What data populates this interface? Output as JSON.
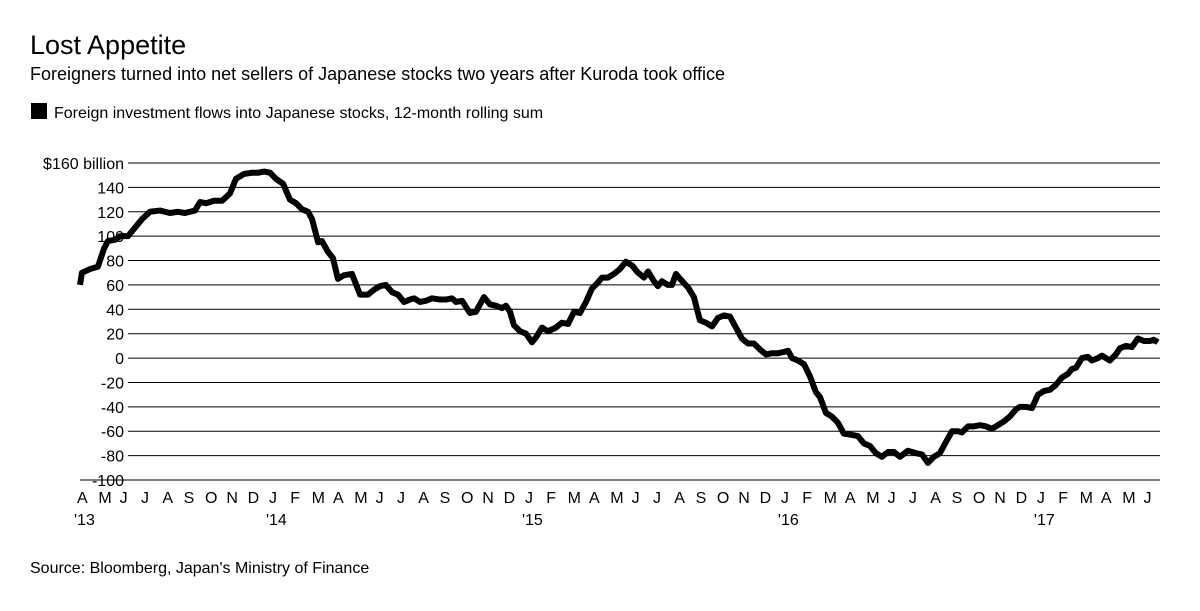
{
  "chart_data": {
    "type": "line",
    "title": "Lost Appetite",
    "subtitle": "Foreigners turned into net sellers of Japanese stocks two years after Kuroda took office",
    "source": "Source: Bloomberg, Japan's Ministry of Finance",
    "grid": true,
    "x": [
      0,
      0.09,
      0.47,
      0.84,
      1.13,
      1.31,
      1.64,
      1.88,
      2.25,
      2.58,
      2.91,
      3.28,
      3.75,
      4.22,
      4.59,
      4.92,
      5.39,
      5.63,
      5.91,
      6.28,
      6.66,
      7.03,
      7.31,
      7.69,
      8.06,
      8.34,
      8.63,
      8.91,
      9.19,
      9.52,
      9.84,
      10.13,
      10.41,
      10.69,
      10.88,
      11.16,
      11.34,
      11.63,
      11.86,
      12.09,
      12.38,
      12.75,
      13.13,
      13.5,
      13.78,
      14.06,
      14.34,
      14.63,
      14.91,
      15.19,
      15.47,
      15.66,
      15.94,
      16.22,
      16.5,
      16.88,
      17.16,
      17.44,
      17.63,
      17.91,
      18.28,
      18.56,
      18.94,
      19.22,
      19.5,
      19.78,
      19.97,
      20.16,
      20.34,
      20.63,
      20.91,
      21.19,
      21.38,
      21.66,
      21.94,
      22.31,
      22.59,
      22.88,
      23.16,
      23.44,
      23.72,
      24.0,
      24.28,
      24.47,
      24.75,
      25.03,
      25.31,
      25.59,
      25.88,
      26.16,
      26.44,
      26.63,
      26.91,
      27.09,
      27.28,
      27.56,
      27.75,
      27.94,
      28.13,
      28.5,
      28.78,
      29.06,
      29.34,
      29.63,
      29.91,
      30.19,
      30.47,
      30.75,
      31.03,
      31.31,
      31.59,
      31.88,
      32.16,
      32.44,
      32.72,
      33.0,
      33.19,
      33.38,
      33.66,
      33.94,
      34.22,
      34.5,
      34.69,
      34.97,
      35.25,
      35.53,
      35.81,
      36.19,
      36.47,
      36.75,
      37.03,
      37.31,
      37.59,
      37.88,
      38.16,
      38.44,
      38.81,
      39.19,
      39.47,
      39.75,
      40.03,
      40.31,
      40.59,
      40.88,
      41.16,
      41.34,
      41.63,
      41.91,
      42.19,
      42.47,
      42.75,
      43.03,
      43.31,
      43.59,
      43.88,
      44.06,
      44.34,
      44.63,
      44.91,
      45.19,
      45.47,
      45.75,
      46.03,
      46.31,
      46.5,
      46.69,
      46.97,
      47.25,
      47.44,
      47.72,
      47.91,
      48.09,
      48.28,
      48.56,
      48.75,
      49.03,
      49.31,
      49.59,
      49.88,
      50.16,
      50.34,
      50.53
    ],
    "series": [
      {
        "name": "Foreign investment flows into Japanese stocks, 12-month rolling sum",
        "color": "#000000",
        "values": [
          60,
          70,
          73,
          75,
          90,
          96,
          97,
          100,
          100,
          107,
          114,
          120,
          121,
          119,
          120,
          119,
          121,
          128,
          127,
          129,
          129,
          135,
          147,
          151,
          152,
          152,
          153,
          152,
          147,
          143,
          130,
          127,
          122,
          120,
          114,
          95,
          96,
          87,
          82,
          65,
          68,
          69,
          52,
          52,
          56,
          59,
          60,
          54,
          52,
          46,
          48,
          49,
          46,
          47,
          49,
          48,
          48,
          49,
          46,
          47,
          37,
          38,
          50,
          44,
          43,
          41,
          43,
          38,
          27,
          22,
          20,
          13,
          17,
          25,
          22,
          25,
          29,
          28,
          38,
          37,
          46,
          57,
          62,
          66,
          66,
          69,
          73,
          79,
          76,
          70,
          66,
          71,
          63,
          59,
          63,
          60,
          60,
          69,
          65,
          58,
          50,
          31,
          29,
          26,
          33,
          35,
          34,
          25,
          16,
          12,
          12,
          7,
          3,
          4,
          4,
          5,
          6,
          0,
          -2,
          -5,
          -15,
          -28,
          -32,
          -45,
          -48,
          -53,
          -62,
          -63,
          -64,
          -70,
          -72,
          -78,
          -81,
          -77,
          -77,
          -81,
          -76,
          -78,
          -79,
          -86,
          -81,
          -78,
          -69,
          -60,
          -60,
          -61,
          -56,
          -56,
          -55,
          -56,
          -58,
          -55,
          -52,
          -48,
          -42,
          -40,
          -40,
          -41,
          -30,
          -27,
          -26,
          -22,
          -16,
          -13,
          -9,
          -8,
          0,
          1,
          -2,
          0,
          2,
          0,
          -2,
          3,
          8,
          10,
          9,
          16,
          14,
          14,
          15,
          13
        ]
      }
    ],
    "xlim": [
      0,
      50.63
    ],
    "xticks": [
      {
        "value": 0,
        "label": "A"
      },
      {
        "value": 1,
        "label": "M"
      },
      {
        "value": 2,
        "label": "J"
      },
      {
        "value": 3,
        "label": "J"
      },
      {
        "value": 4,
        "label": "A"
      },
      {
        "value": 5,
        "label": "S"
      },
      {
        "value": 6,
        "label": "O"
      },
      {
        "value": 7,
        "label": "N"
      },
      {
        "value": 8,
        "label": "D"
      },
      {
        "value": 9,
        "label": "J"
      },
      {
        "value": 10,
        "label": "F"
      },
      {
        "value": 11,
        "label": "M"
      },
      {
        "value": 12,
        "label": "A"
      },
      {
        "value": 13,
        "label": "M"
      },
      {
        "value": 14,
        "label": "J"
      },
      {
        "value": 15,
        "label": "J"
      },
      {
        "value": 16,
        "label": "A"
      },
      {
        "value": 17,
        "label": "S"
      },
      {
        "value": 18,
        "label": "O"
      },
      {
        "value": 19,
        "label": "N"
      },
      {
        "value": 20,
        "label": "D"
      },
      {
        "value": 21,
        "label": "J"
      },
      {
        "value": 22,
        "label": "F"
      },
      {
        "value": 23,
        "label": "M"
      },
      {
        "value": 24,
        "label": "A"
      },
      {
        "value": 25,
        "label": "M"
      },
      {
        "value": 26,
        "label": "J"
      },
      {
        "value": 27,
        "label": "J"
      },
      {
        "value": 28,
        "label": "A"
      },
      {
        "value": 29,
        "label": "S"
      },
      {
        "value": 30,
        "label": "O"
      },
      {
        "value": 31,
        "label": "N"
      },
      {
        "value": 32,
        "label": "D"
      },
      {
        "value": 33,
        "label": "J"
      },
      {
        "value": 34,
        "label": "F"
      },
      {
        "value": 35,
        "label": "M"
      },
      {
        "value": 36,
        "label": "A"
      },
      {
        "value": 37,
        "label": "M"
      },
      {
        "value": 38,
        "label": "J"
      },
      {
        "value": 39,
        "label": "J"
      },
      {
        "value": 40,
        "label": "A"
      },
      {
        "value": 41,
        "label": "S"
      },
      {
        "value": 42,
        "label": "O"
      },
      {
        "value": 43,
        "label": "N"
      },
      {
        "value": 44,
        "label": "D"
      },
      {
        "value": 45,
        "label": "J"
      },
      {
        "value": 46,
        "label": "F"
      },
      {
        "value": 47,
        "label": "M"
      },
      {
        "value": 48,
        "label": "A"
      },
      {
        "value": 49,
        "label": "M"
      },
      {
        "value": 50,
        "label": "J"
      }
    ],
    "year_labels": [
      {
        "value": 0,
        "label": "'13"
      },
      {
        "value": 9,
        "label": "'14"
      },
      {
        "value": 21,
        "label": "'15"
      },
      {
        "value": 33,
        "label": "'16"
      },
      {
        "value": 45,
        "label": "'17"
      }
    ],
    "ylim": [
      -100,
      160
    ],
    "yticks": [
      -100,
      -80,
      -60,
      -40,
      -20,
      0,
      20,
      40,
      60,
      80,
      100,
      120,
      {
        "value": 140,
        "label": "140"
      },
      {
        "value": 160,
        "label": "$160 billion"
      }
    ]
  }
}
